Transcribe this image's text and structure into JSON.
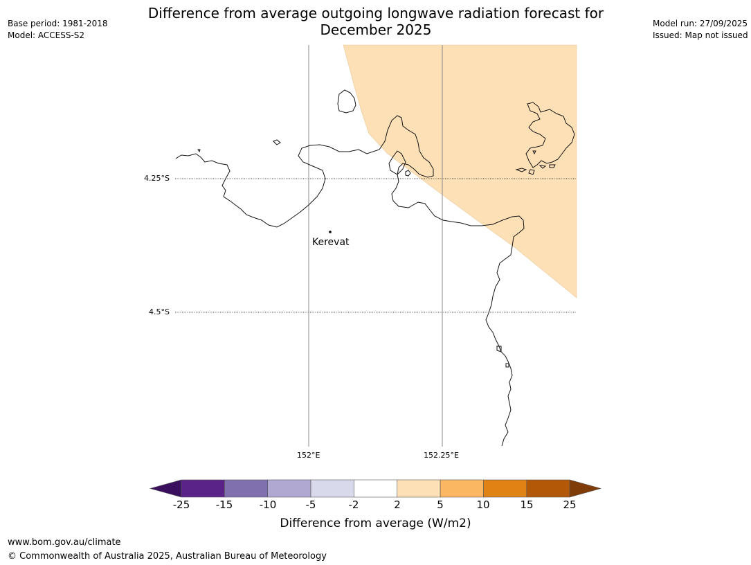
{
  "header": {
    "title_line1": "Difference from average outgoing longwave radiation forecast for",
    "title_line2": "December 2025",
    "base_period": "Base period: 1981-2018",
    "model": "Model: ACCESS-S2",
    "model_run": "Model run: 27/09/2025",
    "issued": "Issued: Map not issued"
  },
  "map": {
    "lat_labels": [
      "4.25°S",
      "4.5°S"
    ],
    "lon_labels": [
      "152°E",
      "152.25°E"
    ],
    "place": "Kerevat",
    "shading_color": "#fde0b6"
  },
  "colorbar": {
    "label": "Difference from average (W/m2)",
    "ticks": [
      "-25",
      "-15",
      "-10",
      "-5",
      "-2",
      "2",
      "5",
      "10",
      "15",
      "25"
    ],
    "colors": [
      "#3a0f5e",
      "#5a2388",
      "#8071ae",
      "#b0a8d1",
      "#d9d9ec",
      "#ffffff",
      "#fde0b6",
      "#fbb761",
      "#e08214",
      "#b35806",
      "#7f3b08"
    ]
  },
  "footer": {
    "url": "www.bom.gov.au/climate",
    "copyright": "© Commonwealth of Australia 2025, Australian Bureau of Meteorology"
  }
}
